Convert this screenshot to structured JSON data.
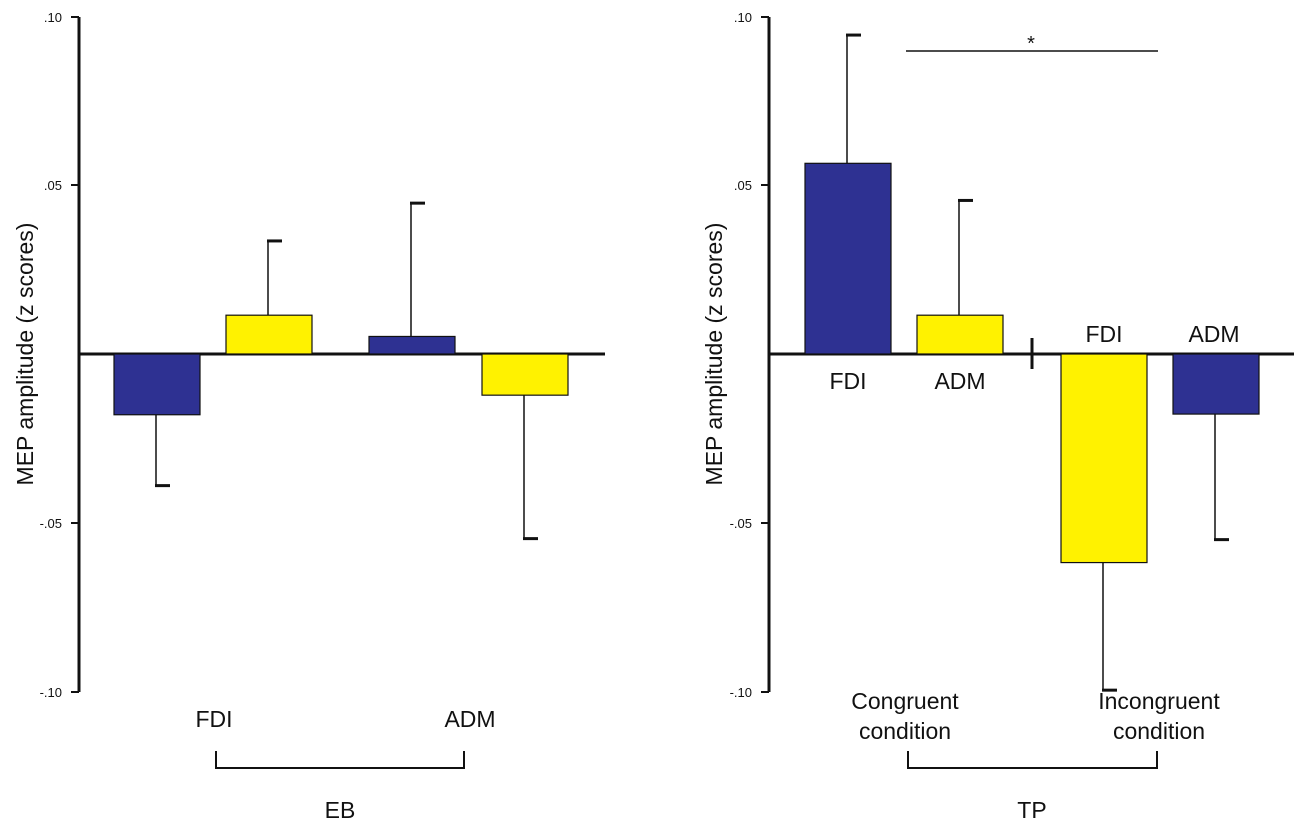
{
  "colors": {
    "blue": "#2e3192",
    "yellow": "#fff200",
    "axis": "#111111"
  },
  "chart_data": [
    {
      "type": "bar",
      "ylabel": "MEP amplitude (z scores)",
      "ylim": [
        -0.1,
        0.1
      ],
      "yticks": [
        0.1,
        0.05,
        -0.05,
        -0.1
      ],
      "ytick_labels": [
        ".10",
        ".05",
        "-.05",
        "-.10"
      ],
      "grid": false,
      "bars": [
        {
          "value": -0.018,
          "err": 0.021,
          "color": "blue"
        },
        {
          "value": 0.0115,
          "err": 0.022,
          "color": "yellow"
        },
        {
          "value": 0.0052,
          "err": 0.0395,
          "color": "blue"
        },
        {
          "value": -0.0122,
          "err": 0.0425,
          "color": "yellow"
        }
      ],
      "category_labels": [
        "FDI",
        "ADM"
      ],
      "group_label": "EB"
    },
    {
      "type": "bar",
      "ylabel": "MEP amplitude (z scores)",
      "ylim": [
        -0.1,
        0.1
      ],
      "yticks": [
        0.1,
        0.05,
        -0.05,
        -0.1
      ],
      "ytick_labels": [
        ".10",
        ".05",
        "-.05",
        "-.10"
      ],
      "grid": false,
      "bars": [
        {
          "value": 0.0565,
          "err": 0.038,
          "color": "blue",
          "label": "FDI"
        },
        {
          "value": 0.0115,
          "err": 0.034,
          "color": "yellow",
          "label": "ADM"
        },
        {
          "value": -0.0618,
          "err": 0.0378,
          "color": "yellow",
          "label": "FDI"
        },
        {
          "value": -0.0178,
          "err": 0.0372,
          "color": "blue",
          "label": "ADM"
        }
      ],
      "condition_labels": [
        [
          "Congruent",
          "condition"
        ],
        [
          "Incongruent",
          "condition"
        ]
      ],
      "significance": "*",
      "group_label": "TP"
    }
  ]
}
